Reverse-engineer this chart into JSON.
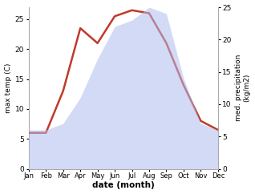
{
  "months": [
    "Jan",
    "Feb",
    "Mar",
    "Apr",
    "May",
    "Jun",
    "Jul",
    "Aug",
    "Sep",
    "Oct",
    "Nov",
    "Dec"
  ],
  "x": [
    1,
    2,
    3,
    4,
    5,
    6,
    7,
    8,
    9,
    10,
    11,
    12
  ],
  "temperature": [
    6.0,
    6.0,
    13.0,
    23.5,
    21.0,
    25.5,
    26.5,
    26.0,
    21.0,
    14.0,
    8.0,
    6.5
  ],
  "precipitation": [
    6,
    6,
    7,
    11,
    17,
    22,
    23,
    25,
    24,
    14,
    7,
    6
  ],
  "temp_color": "#c0392b",
  "precip_color": "#b0bcee",
  "precip_fill_alpha": 0.55,
  "left_ylabel": "max temp (C)",
  "right_ylabel": "med. precipitation\n(kg/m2)",
  "xlabel": "date (month)",
  "ylim_left": [
    0,
    27
  ],
  "ylim_right": [
    0,
    25
  ],
  "yticks_left": [
    0,
    5,
    10,
    15,
    20,
    25
  ],
  "yticks_right": [
    0,
    5,
    10,
    15,
    20,
    25
  ],
  "background_color": "#ffffff"
}
